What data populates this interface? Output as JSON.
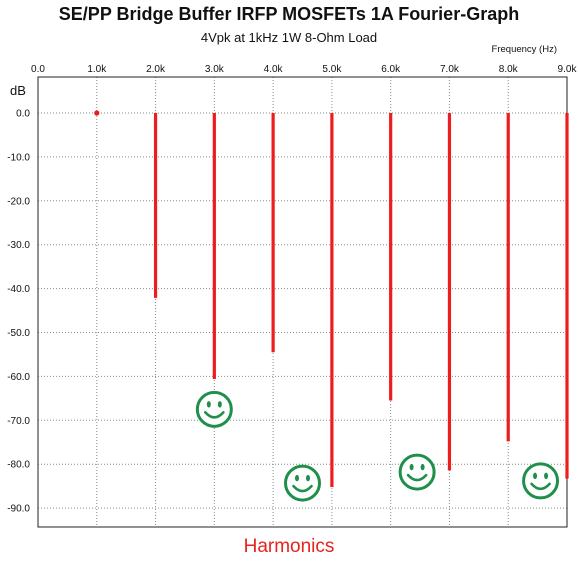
{
  "chart_data": {
    "type": "bar",
    "title": "SE/PP Bridge Buffer IRFP MOSFETs 1A Fourier-Graph",
    "subtitle": "4Vpk at 1kHz 1W 8-Ohm Load",
    "xlabel": "Frequency   (Hz)",
    "ylabel": "dB",
    "footer": "Harmonics",
    "x_ticks": [
      "0.0",
      "1.0k",
      "2.0k",
      "3.0k",
      "4.0k",
      "5.0k",
      "6.0k",
      "7.0k",
      "8.0k",
      "9.0k"
    ],
    "y_ticks": [
      "0.0",
      "-10.0",
      "-20.0",
      "-30.0",
      "-40.0",
      "-50.0",
      "-60.0",
      "-70.0",
      "-80.0",
      "-90.0"
    ],
    "xlim": [
      0,
      9000
    ],
    "ylim": [
      -94,
      0
    ],
    "grid": "dotted",
    "bar_color": "#ee1c1c",
    "series": [
      {
        "values": [
          {
            "x": 1000,
            "y": 0.0
          },
          {
            "x": 2000,
            "y": -42.1
          },
          {
            "x": 3000,
            "y": -60.6
          },
          {
            "x": 4000,
            "y": -54.5
          },
          {
            "x": 5000,
            "y": -85.2
          },
          {
            "x": 6000,
            "y": -65.5
          },
          {
            "x": 7000,
            "y": -81.4
          },
          {
            "x": 8000,
            "y": -74.8
          },
          {
            "x": 9000,
            "y": -83.3
          }
        ]
      }
    ],
    "annotations": [
      {
        "icon": "smiley-face-icon",
        "x": 3000,
        "y": -67.5
      },
      {
        "icon": "smiley-face-icon",
        "x": 4500,
        "y": -84.3
      },
      {
        "icon": "smiley-face-icon",
        "x": 6450,
        "y": -81.8
      },
      {
        "icon": "smiley-face-icon",
        "x": 8550,
        "y": -83.8
      }
    ],
    "annotation_color": "#1f8f4a"
  }
}
